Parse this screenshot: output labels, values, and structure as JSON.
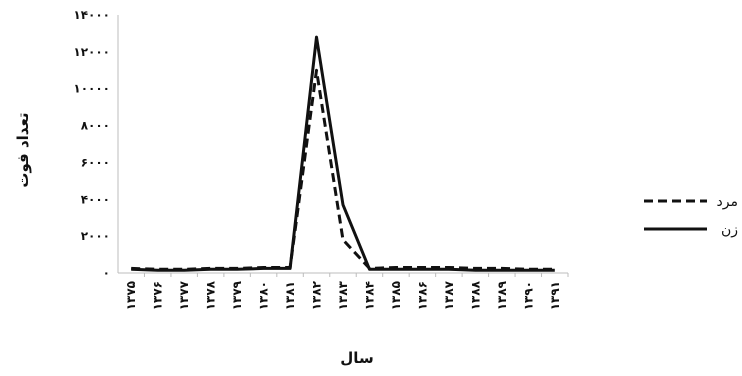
{
  "chart_data": {
    "type": "line",
    "xlabel": "سال",
    "ylabel": "تعداد فوت",
    "ylim": [
      0,
      14000
    ],
    "yticks": [
      0,
      2000,
      4000,
      6000,
      8000,
      10000,
      12000,
      14000
    ],
    "ytick_labels": [
      "۰",
      "۲۰۰۰",
      "۴۰۰۰",
      "۶۰۰۰",
      "۸۰۰۰",
      "۱۰۰۰۰",
      "۱۲۰۰۰",
      "۱۴۰۰۰"
    ],
    "categories": [
      "۱۳۷۵",
      "۱۳۷۶",
      "۱۳۷۷",
      "۱۳۷۸",
      "۱۳۷۹",
      "۱۳۸۰",
      "۱۳۸۱",
      "۱۳۸۲",
      "۱۳۸۳",
      "۱۳۸۴",
      "۱۳۸۵",
      "۱۳۸۶",
      "۱۳۸۷",
      "۱۳۸۸",
      "۱۳۸۹",
      "۱۳۹۰",
      "۱۳۹۱"
    ],
    "grid": false,
    "legend_position": "right",
    "series": [
      {
        "name": "مرد",
        "style": "dashed",
        "color": "#111111",
        "values": [
          250,
          200,
          200,
          250,
          250,
          300,
          300,
          11000,
          1800,
          250,
          300,
          300,
          300,
          250,
          250,
          200,
          200
        ]
      },
      {
        "name": "زن",
        "style": "solid",
        "color": "#111111",
        "values": [
          200,
          150,
          150,
          200,
          200,
          250,
          250,
          12800,
          3700,
          200,
          200,
          200,
          200,
          150,
          150,
          150,
          150
        ]
      }
    ]
  }
}
